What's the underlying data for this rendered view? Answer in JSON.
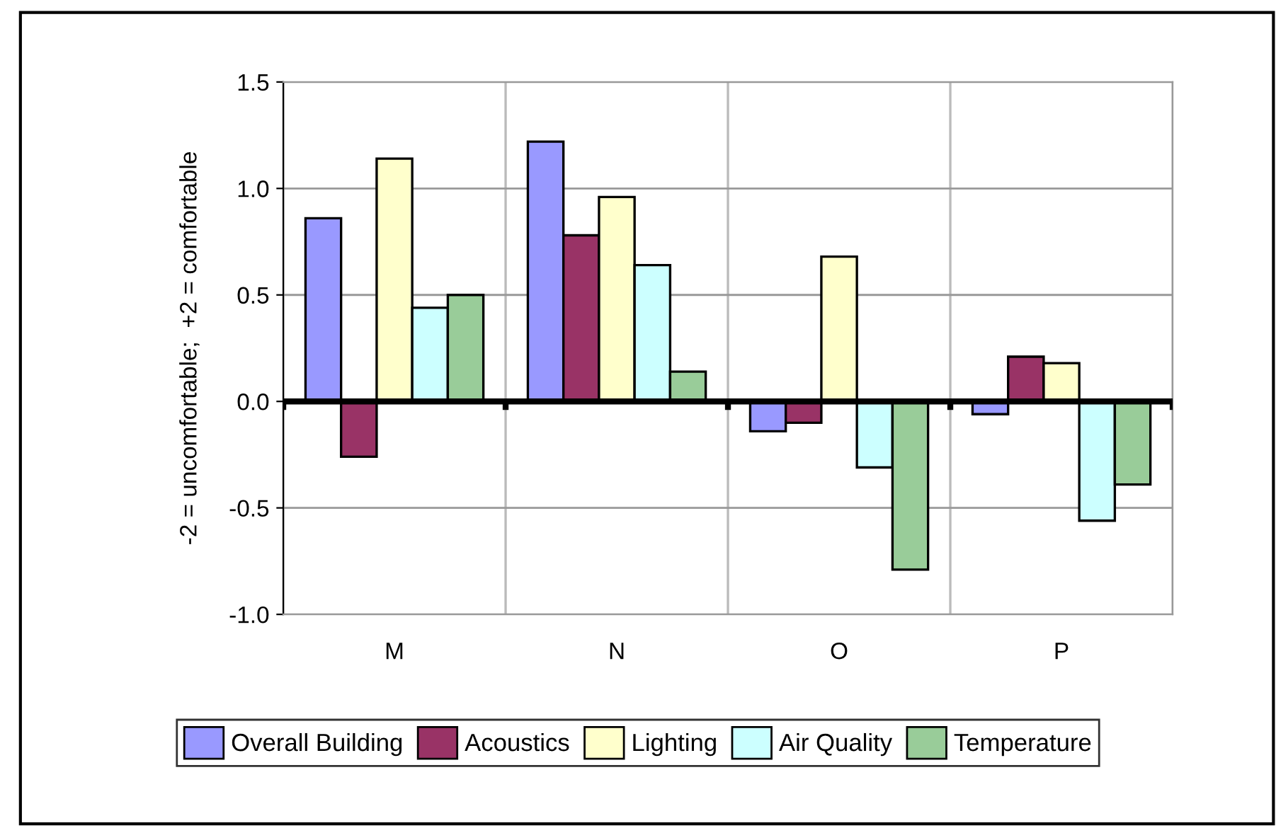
{
  "chart_data": {
    "type": "bar",
    "ylabel": "-2 = uncomfortable;  +2 = comfortable",
    "categories": [
      "M",
      "N",
      "O",
      "P"
    ],
    "series": [
      {
        "name": "Overall Building",
        "color": "#9999ff",
        "values": [
          0.86,
          1.22,
          -0.14,
          -0.06
        ]
      },
      {
        "name": "Acoustics",
        "color": "#993366",
        "values": [
          -0.26,
          0.78,
          -0.1,
          0.21
        ]
      },
      {
        "name": "Lighting",
        "color": "#ffffcc",
        "values": [
          1.14,
          0.96,
          0.68,
          0.18
        ]
      },
      {
        "name": "Air Quality",
        "color": "#ccffff",
        "values": [
          0.44,
          0.64,
          -0.31,
          -0.56
        ]
      },
      {
        "name": "Temperature",
        "color": "#99cc99",
        "values": [
          0.5,
          0.14,
          -0.79,
          -0.39
        ]
      }
    ],
    "ylim": [
      -1.0,
      1.5
    ],
    "yticks": [
      {
        "value": -1.0,
        "label": "-1.0"
      },
      {
        "value": -0.5,
        "label": "-0.5"
      },
      {
        "value": 0.0,
        "label": "0.0"
      },
      {
        "value": 0.5,
        "label": "0.5"
      },
      {
        "value": 1.0,
        "label": "1.0"
      },
      {
        "value": 1.5,
        "label": "1.5"
      }
    ],
    "grid": true,
    "legend": "bottom"
  }
}
